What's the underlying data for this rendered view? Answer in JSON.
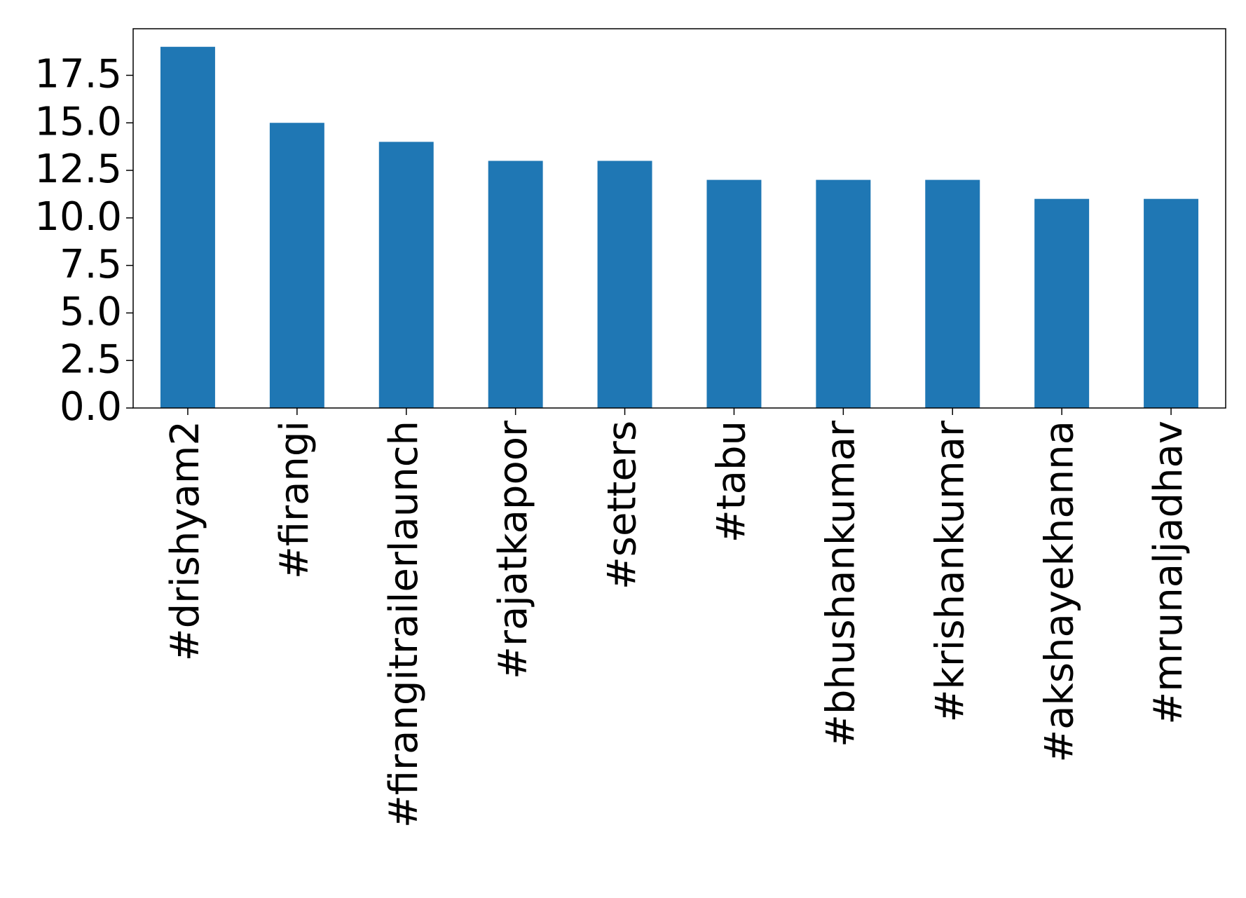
{
  "chart_data": {
    "type": "bar",
    "categories": [
      "#drishyam2",
      "#firangi",
      "#firangitrailerlaunch",
      "#rajatkapoor",
      "#setters",
      "#tabu",
      "#bhushankumar",
      "#krishankumar",
      "#akshayekhanna",
      "#mrunaljadhav"
    ],
    "values": [
      19,
      15,
      14,
      13,
      13,
      12,
      12,
      12,
      11,
      11
    ],
    "color": "#1f77b4",
    "ylim": [
      0,
      19.95
    ],
    "yticks": [
      {
        "value": 0,
        "label": "0.0"
      },
      2.5,
      {
        "value": 5,
        "label": "5.0"
      },
      7.5,
      {
        "value": 10,
        "label": "10.0"
      },
      12.5,
      {
        "value": 15,
        "label": "15.0"
      },
      17.5
    ],
    "grid": false
  }
}
